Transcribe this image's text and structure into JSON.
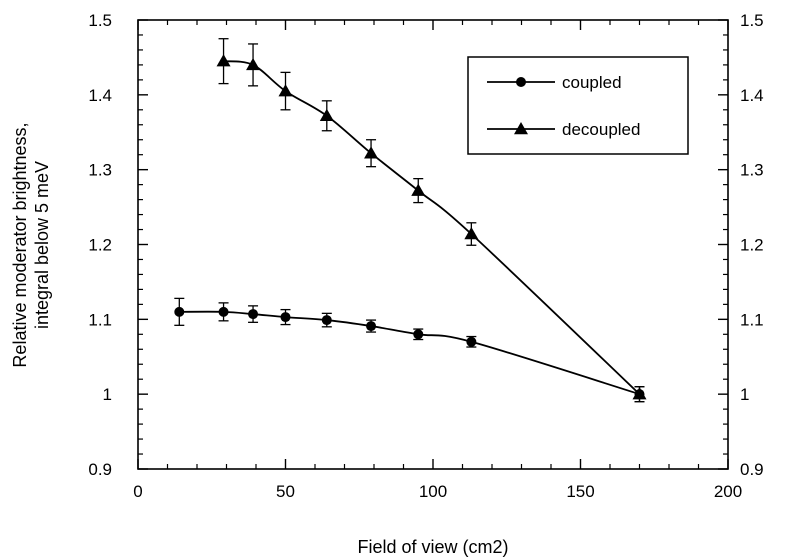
{
  "chart_data": {
    "type": "line",
    "xlabel": "Field of view (cm2)",
    "ylabel_lines": [
      "Relative moderator brightness,",
      "integral below 5 meV"
    ],
    "xlim": [
      0,
      200
    ],
    "ylim": [
      0.9,
      1.5
    ],
    "xticks": [
      0,
      50,
      100,
      150,
      200
    ],
    "yticks": [
      0.9,
      1,
      1.1,
      1.2,
      1.3,
      1.4,
      1.5
    ],
    "ytick_labels": [
      "0.9",
      "1",
      "1.1",
      "1.2",
      "1.3",
      "1.4",
      "1.5"
    ],
    "right_axis_labels": true,
    "grid": false,
    "legend_position": "top-right",
    "series": [
      {
        "name": "coupled",
        "marker": "circle",
        "x": [
          14,
          29,
          39,
          50,
          64,
          79,
          95,
          113,
          170
        ],
        "y": [
          1.11,
          1.11,
          1.107,
          1.103,
          1.099,
          1.091,
          1.08,
          1.07,
          1.0
        ],
        "err": [
          0.018,
          0.012,
          0.011,
          0.01,
          0.009,
          0.008,
          0.007,
          0.007,
          0.01
        ]
      },
      {
        "name": "decoupled",
        "marker": "triangle",
        "x": [
          29,
          39,
          50,
          64,
          79,
          95,
          113,
          170
        ],
        "y": [
          1.445,
          1.44,
          1.405,
          1.372,
          1.322,
          1.272,
          1.214,
          1.0
        ],
        "err": [
          0.03,
          0.028,
          0.025,
          0.02,
          0.018,
          0.016,
          0.015,
          0.01
        ]
      }
    ]
  }
}
